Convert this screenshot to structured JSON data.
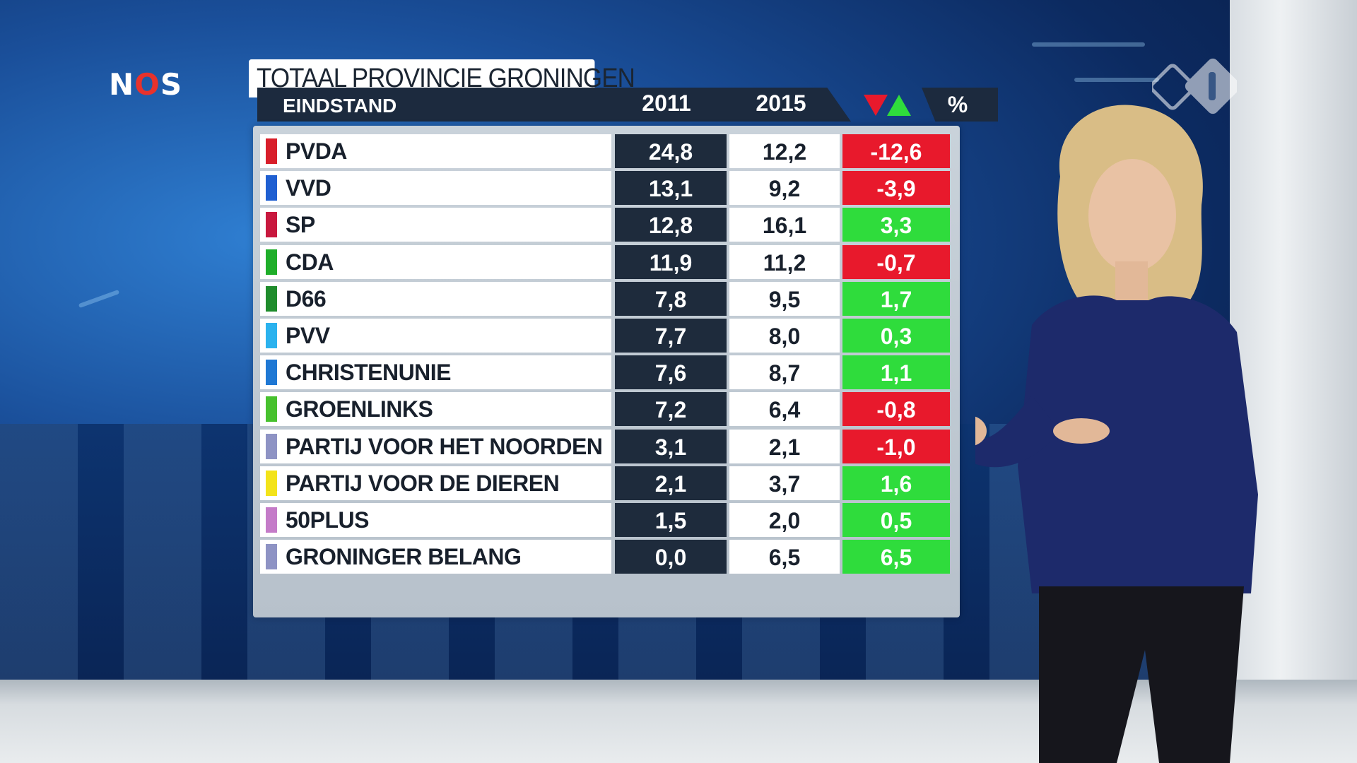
{
  "broadcaster_logo": {
    "text_n": "N",
    "text_o": "O",
    "text_s": "S"
  },
  "graphic": {
    "title": "TOTAAL PROVINCIE GRONINGEN",
    "subtitle": "EINDSTAND",
    "col_2011": "2011",
    "col_2015": "2015",
    "col_change": "%",
    "colors": {
      "down": "#e8192c",
      "up": "#2fdc3c"
    }
  },
  "table": {
    "rows": [
      {
        "party": "PVDA",
        "v2011": "24,8",
        "v2015": "12,2",
        "diff": "-12,6",
        "trend": "down",
        "color": "#d81e2a"
      },
      {
        "party": "VVD",
        "v2011": "13,1",
        "v2015": "9,2",
        "diff": "-3,9",
        "trend": "down",
        "color": "#1f5fd1"
      },
      {
        "party": "SP",
        "v2011": "12,8",
        "v2015": "16,1",
        "diff": "3,3",
        "trend": "up",
        "color": "#c8183e"
      },
      {
        "party": "CDA",
        "v2011": "11,9",
        "v2015": "11,2",
        "diff": "-0,7",
        "trend": "down",
        "color": "#1fae2a"
      },
      {
        "party": "D66",
        "v2011": "7,8",
        "v2015": "9,5",
        "diff": "1,7",
        "trend": "up",
        "color": "#1f8c2c"
      },
      {
        "party": "PVV",
        "v2011": "7,7",
        "v2015": "8,0",
        "diff": "0,3",
        "trend": "up",
        "color": "#2bb2ee"
      },
      {
        "party": "CHRISTENUNIE",
        "v2011": "7,6",
        "v2015": "8,7",
        "diff": "1,1",
        "trend": "up",
        "color": "#1f78d4"
      },
      {
        "party": "GROENLINKS",
        "v2011": "7,2",
        "v2015": "6,4",
        "diff": "-0,8",
        "trend": "down",
        "color": "#47c12e"
      },
      {
        "party": "PARTIJ VOOR HET NOORDEN",
        "v2011": "3,1",
        "v2015": "2,1",
        "diff": "-1,0",
        "trend": "down",
        "color": "#8e93c4"
      },
      {
        "party": "PARTIJ VOOR DE DIEREN",
        "v2011": "2,1",
        "v2015": "3,7",
        "diff": "1,6",
        "trend": "up",
        "color": "#f3e31a"
      },
      {
        "party": "50PLUS",
        "v2011": "1,5",
        "v2015": "2,0",
        "diff": "0,5",
        "trend": "up",
        "color": "#c47bc8"
      },
      {
        "party": "GRONINGER BELANG",
        "v2011": "0,0",
        "v2015": "6,5",
        "diff": "6,5",
        "trend": "up",
        "color": "#8e93c4"
      }
    ]
  }
}
